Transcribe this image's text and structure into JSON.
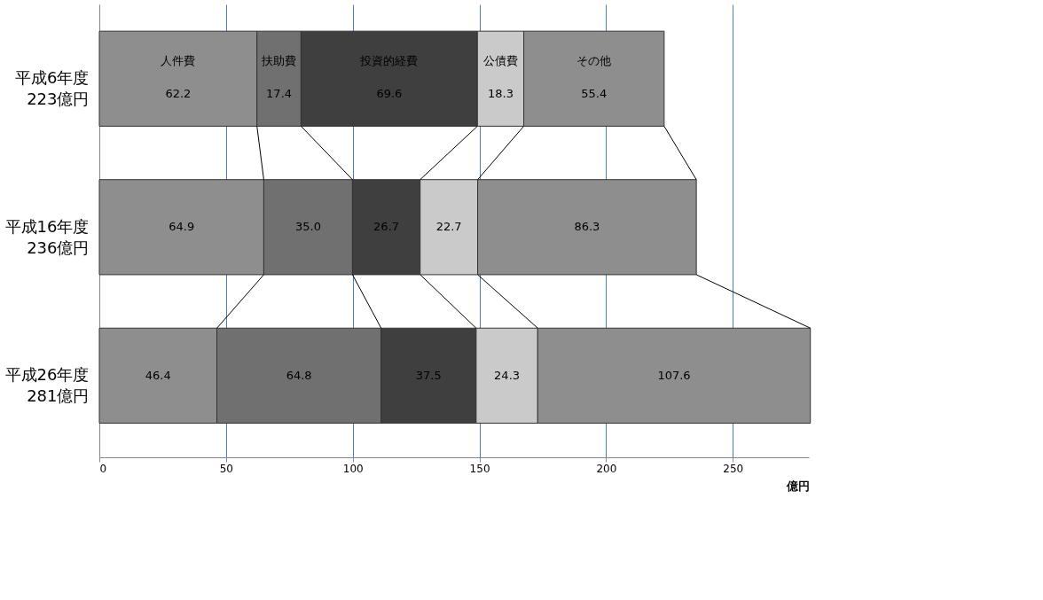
{
  "chart_data": {
    "type": "bar",
    "orientation": "horizontal",
    "stacked": true,
    "categories": [
      "平成6年度\n223億円",
      "平成16年度\n236億円",
      "平成26年度\n281億円"
    ],
    "series": [
      {
        "name": "人件費",
        "color": "#8e8e8e",
        "values": [
          62.2,
          64.9,
          46.4
        ],
        "value_labels": [
          "62.2",
          "64.9",
          "46.4"
        ]
      },
      {
        "name": "扶助費",
        "color": "#707070",
        "values": [
          17.4,
          35.0,
          64.8
        ],
        "value_labels": [
          "17.4",
          "35.0",
          "64.8"
        ]
      },
      {
        "name": "投資的経費",
        "color": "#3f3f3f",
        "values": [
          69.6,
          26.7,
          37.5
        ],
        "value_labels": [
          "69.6",
          "26.7",
          "37.5"
        ]
      },
      {
        "name": "公債費",
        "color": "#cacaca",
        "values": [
          18.3,
          22.7,
          24.3
        ],
        "value_labels": [
          "18.3",
          "22.7",
          "24.3"
        ]
      },
      {
        "name": "その他",
        "color": "#8e8e8e",
        "values": [
          55.4,
          86.3,
          107.6
        ],
        "value_labels": [
          "55.4",
          "86.3",
          "107.6"
        ]
      }
    ],
    "xlim": [
      0,
      280
    ],
    "xticks": [
      0,
      50,
      100,
      150,
      200,
      250
    ],
    "xlabel": "億円",
    "grid": "x",
    "legend": false
  }
}
